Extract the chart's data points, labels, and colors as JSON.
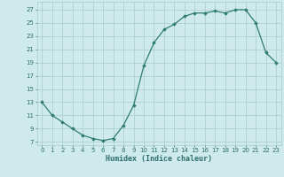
{
  "x": [
    0,
    1,
    2,
    3,
    4,
    5,
    6,
    7,
    8,
    9,
    10,
    11,
    12,
    13,
    14,
    15,
    16,
    17,
    18,
    19,
    20,
    21,
    22,
    23
  ],
  "y": [
    13,
    11,
    10,
    9,
    8,
    7.5,
    7.2,
    7.5,
    9.5,
    12.5,
    18.5,
    22,
    24,
    24.8,
    26,
    26.5,
    26.5,
    26.8,
    26.5,
    27,
    27,
    25,
    20.5,
    19
  ],
  "line_color": "#2e7d6e",
  "marker": "D",
  "marker_size": 1.8,
  "bg_color": "#ceeaea",
  "grid_color": "#aacaca",
  "xlabel": "Humidex (Indice chaleur)",
  "xlabel_fontsize": 6,
  "ylabel_ticks": [
    7,
    9,
    11,
    13,
    15,
    17,
    19,
    21,
    23,
    25,
    27
  ],
  "xlim": [
    -0.5,
    23.5
  ],
  "ylim": [
    6.5,
    28.2
  ],
  "xtick_labels": [
    "0",
    "1",
    "2",
    "3",
    "4",
    "5",
    "6",
    "7",
    "8",
    "9",
    "10",
    "11",
    "12",
    "13",
    "14",
    "15",
    "16",
    "17",
    "18",
    "19",
    "20",
    "21",
    "22",
    "23"
  ],
  "tick_color": "#2e6e6e",
  "tick_fontsize": 5.0,
  "linewidth": 0.9
}
